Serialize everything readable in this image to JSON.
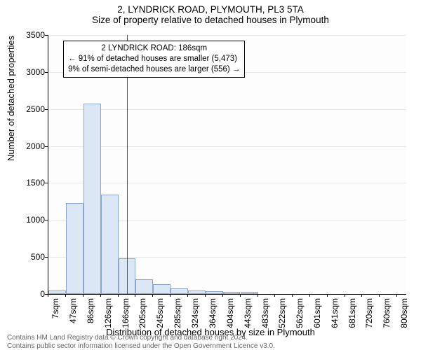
{
  "title_line1": "2, LYNDRICK ROAD, PLYMOUTH, PL3 5TA",
  "title_line2": "Size of property relative to detached houses in Plymouth",
  "y_axis_label": "Number of detached properties",
  "x_axis_label": "Distribution of detached houses by size in Plymouth",
  "chart": {
    "type": "histogram",
    "x_start": 7,
    "x_end": 820,
    "y_start": 0,
    "y_end": 3500,
    "y_ticks": [
      0,
      500,
      1000,
      1500,
      2000,
      2500,
      3000,
      3500
    ],
    "x_ticks": [
      7,
      47,
      86,
      126,
      166,
      205,
      245,
      285,
      324,
      364,
      404,
      443,
      483,
      522,
      562,
      601,
      641,
      681,
      720,
      760,
      800
    ],
    "x_tick_suffix": "sqm",
    "bars": [
      {
        "x0": 7,
        "x1": 47,
        "y": 50
      },
      {
        "x0": 47,
        "x1": 86,
        "y": 1230
      },
      {
        "x0": 86,
        "x1": 126,
        "y": 2570
      },
      {
        "x0": 126,
        "x1": 166,
        "y": 1340
      },
      {
        "x0": 166,
        "x1": 205,
        "y": 480
      },
      {
        "x0": 205,
        "x1": 245,
        "y": 200
      },
      {
        "x0": 245,
        "x1": 285,
        "y": 130
      },
      {
        "x0": 285,
        "x1": 324,
        "y": 80
      },
      {
        "x0": 324,
        "x1": 364,
        "y": 50
      },
      {
        "x0": 364,
        "x1": 404,
        "y": 40
      },
      {
        "x0": 404,
        "x1": 443,
        "y": 30
      },
      {
        "x0": 443,
        "x1": 483,
        "y": 25
      }
    ],
    "reference_x": 186,
    "bar_fill": "#dbe7f5",
    "bar_stroke": "#8aa8cc",
    "refline_color": "#d62020",
    "grid_color": "#e8e8e8",
    "bg_color": "#fdfdfd"
  },
  "annotation": {
    "line1": "2 LYNDRICK ROAD: 186sqm",
    "line2": "← 91% of detached houses are smaller (5,473)",
    "line3": "9% of semi-detached houses are larger (556) →"
  },
  "footer_line1": "Contains HM Land Registry data © Crown copyright and database right 2024.",
  "footer_line2": "Contains public sector information licensed under the Open Government Licence v3.0."
}
